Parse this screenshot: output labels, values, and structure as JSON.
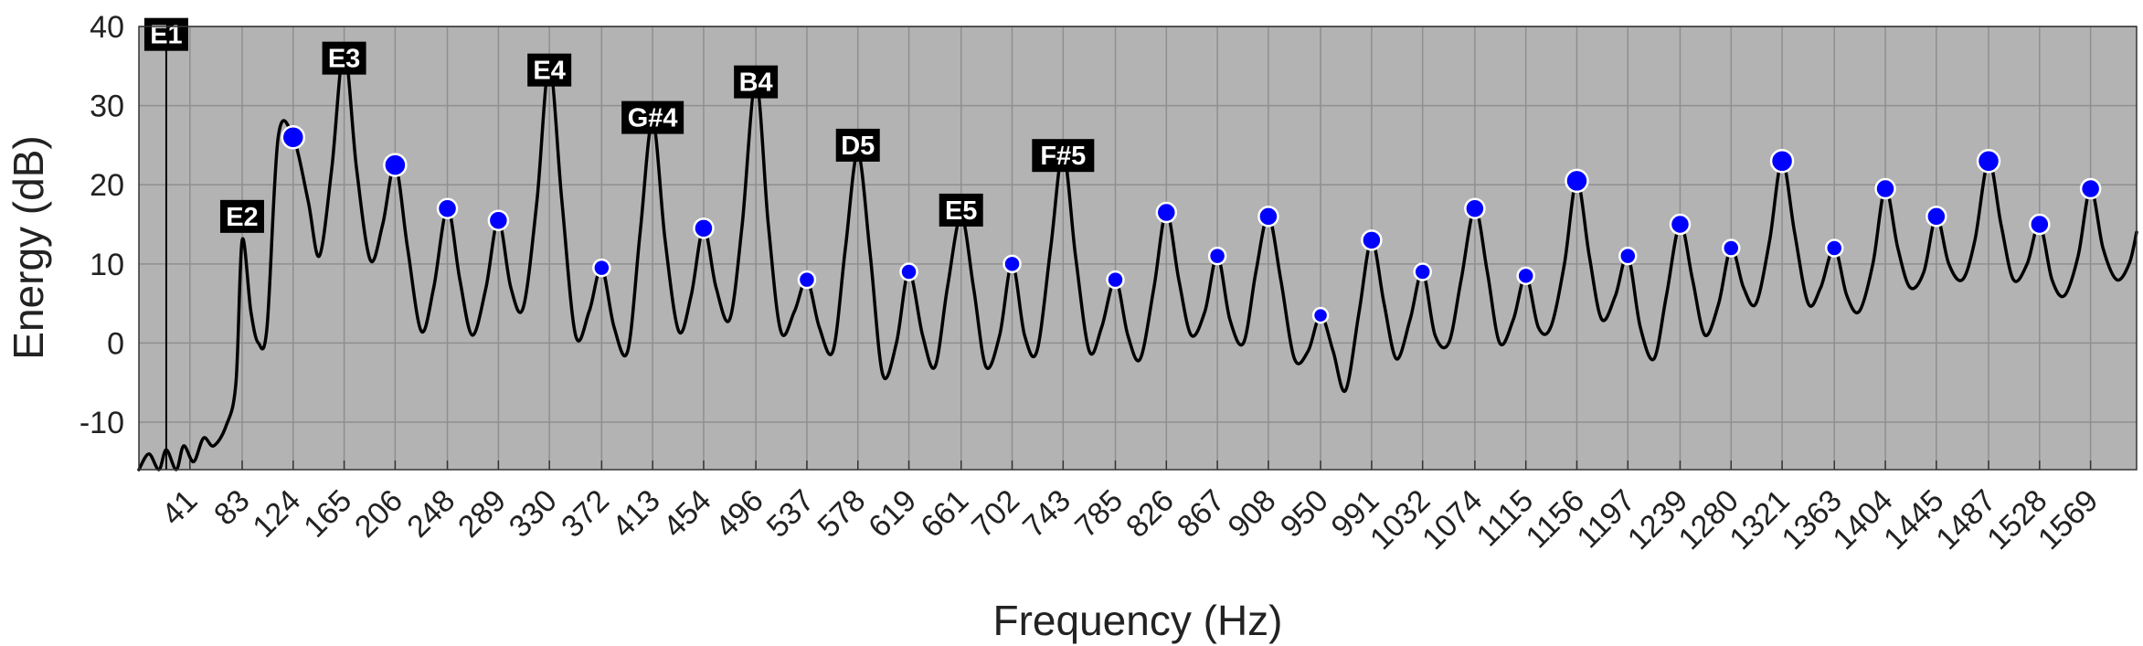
{
  "chart_data": {
    "type": "line",
    "xlabel": "Frequency (Hz)",
    "ylabel": "Energy (dB)",
    "xlim": [
      0,
      1606
    ],
    "ylim": [
      -16,
      40
    ],
    "yticks": [
      40,
      30,
      20,
      10,
      0,
      -10
    ],
    "xticks": [
      41,
      83,
      124,
      165,
      206,
      248,
      289,
      330,
      372,
      413,
      454,
      496,
      537,
      578,
      619,
      661,
      702,
      743,
      785,
      826,
      867,
      908,
      950,
      991,
      1032,
      1074,
      1115,
      1156,
      1197,
      1239,
      1280,
      1321,
      1363,
      1404,
      1445,
      1487,
      1528,
      1569
    ],
    "grid": true,
    "background": "#b3b3b3",
    "line_color": "#000000",
    "marker_color": "#0000ff",
    "curve": {
      "x": [
        0,
        8,
        16,
        22,
        30,
        36,
        44,
        52,
        60,
        70,
        78,
        83,
        90,
        96,
        103,
        112,
        124,
        136,
        145,
        155,
        165,
        175,
        186,
        196,
        206,
        216,
        227,
        237,
        248,
        258,
        268,
        279,
        289,
        299,
        309,
        320,
        330,
        340,
        351,
        362,
        372,
        382,
        393,
        403,
        413,
        423,
        434,
        444,
        454,
        464,
        475,
        485,
        496,
        506,
        516,
        527,
        537,
        547,
        558,
        568,
        578,
        588,
        598,
        609,
        619,
        630,
        640,
        650,
        661,
        671,
        681,
        692,
        702,
        712,
        722,
        733,
        743,
        753,
        764,
        774,
        785,
        795,
        805,
        816,
        826,
        836,
        846,
        857,
        867,
        877,
        888,
        898,
        908,
        918,
        929,
        940,
        950,
        960,
        970,
        981,
        991,
        1001,
        1011,
        1022,
        1032,
        1042,
        1053,
        1063,
        1074,
        1084,
        1094,
        1105,
        1115,
        1125,
        1135,
        1146,
        1156,
        1166,
        1176,
        1187,
        1197,
        1207,
        1218,
        1228,
        1239,
        1249,
        1259,
        1270,
        1280,
        1290,
        1300,
        1311,
        1321,
        1331,
        1342,
        1352,
        1363,
        1373,
        1383,
        1394,
        1404,
        1414,
        1424,
        1435,
        1445,
        1455,
        1466,
        1476,
        1487,
        1497,
        1507,
        1518,
        1528,
        1538,
        1548,
        1559,
        1569,
        1579,
        1590,
        1600,
        1606
      ],
      "y": [
        -16,
        -14,
        -16,
        -13.5,
        -16,
        -13,
        -15,
        -12,
        -13,
        -10.5,
        -5,
        13,
        4,
        0,
        2,
        26,
        26,
        18,
        11,
        22,
        37,
        22,
        10.5,
        15,
        22.5,
        12,
        1.5,
        7,
        17,
        8,
        1,
        7,
        15.5,
        7,
        4.5,
        18,
        35,
        18,
        1,
        4,
        9.5,
        2,
        -1,
        14,
        28,
        13,
        1.5,
        6,
        14.5,
        7,
        3,
        15,
        33,
        15,
        1.5,
        4,
        8,
        2,
        -1,
        12,
        24,
        11,
        -4,
        0,
        9,
        1,
        -3,
        7,
        16,
        7,
        -3,
        1,
        10,
        1,
        -1,
        12,
        24,
        11,
        -1,
        2,
        8,
        1,
        -2,
        7,
        16.5,
        8,
        1,
        4,
        11,
        3,
        0,
        9,
        16,
        8,
        -2,
        -1,
        3.5,
        -1,
        -6,
        4,
        13,
        5,
        -2,
        3,
        9,
        1,
        0,
        8,
        17,
        9,
        0,
        3,
        8.5,
        2,
        2,
        10,
        20.5,
        11,
        3,
        6,
        11,
        2,
        -2,
        6,
        15,
        8,
        1,
        5,
        12,
        7,
        5,
        13,
        23,
        14,
        5,
        7,
        12,
        6,
        4,
        10,
        19.5,
        12,
        7,
        9,
        16,
        10,
        8,
        13,
        23,
        15,
        8,
        10,
        15,
        8,
        6,
        11,
        19.5,
        12,
        8,
        10,
        14
      ]
    },
    "peak_markers": [
      {
        "x": 124,
        "y": 26
      },
      {
        "x": 206,
        "y": 22.5
      },
      {
        "x": 248,
        "y": 17
      },
      {
        "x": 289,
        "y": 15.5
      },
      {
        "x": 372,
        "y": 9.5
      },
      {
        "x": 454,
        "y": 14.5
      },
      {
        "x": 537,
        "y": 8
      },
      {
        "x": 619,
        "y": 9
      },
      {
        "x": 702,
        "y": 10
      },
      {
        "x": 785,
        "y": 8
      },
      {
        "x": 826,
        "y": 16.5
      },
      {
        "x": 867,
        "y": 11
      },
      {
        "x": 908,
        "y": 16
      },
      {
        "x": 950,
        "y": 3.5
      },
      {
        "x": 991,
        "y": 13
      },
      {
        "x": 1032,
        "y": 9
      },
      {
        "x": 1074,
        "y": 17
      },
      {
        "x": 1115,
        "y": 8.5
      },
      {
        "x": 1156,
        "y": 20.5
      },
      {
        "x": 1197,
        "y": 11
      },
      {
        "x": 1239,
        "y": 15
      },
      {
        "x": 1280,
        "y": 12
      },
      {
        "x": 1321,
        "y": 23
      },
      {
        "x": 1363,
        "y": 12
      },
      {
        "x": 1404,
        "y": 19.5
      },
      {
        "x": 1445,
        "y": 16
      },
      {
        "x": 1487,
        "y": 23
      },
      {
        "x": 1528,
        "y": 15
      },
      {
        "x": 1569,
        "y": 19.5
      }
    ],
    "note_labels": [
      {
        "text": "E1",
        "x": 22,
        "y": 39
      },
      {
        "text": "E2",
        "x": 83,
        "y": 16
      },
      {
        "text": "E3",
        "x": 165,
        "y": 36
      },
      {
        "text": "E4",
        "x": 330,
        "y": 34.5
      },
      {
        "text": "G#4",
        "x": 413,
        "y": 28.5
      },
      {
        "text": "B4",
        "x": 496,
        "y": 33
      },
      {
        "text": "D5",
        "x": 578,
        "y": 25
      },
      {
        "text": "E5",
        "x": 661,
        "y": 16.8
      },
      {
        "text": "F#5",
        "x": 743,
        "y": 23.7
      }
    ],
    "vertical_line_x": 22
  }
}
